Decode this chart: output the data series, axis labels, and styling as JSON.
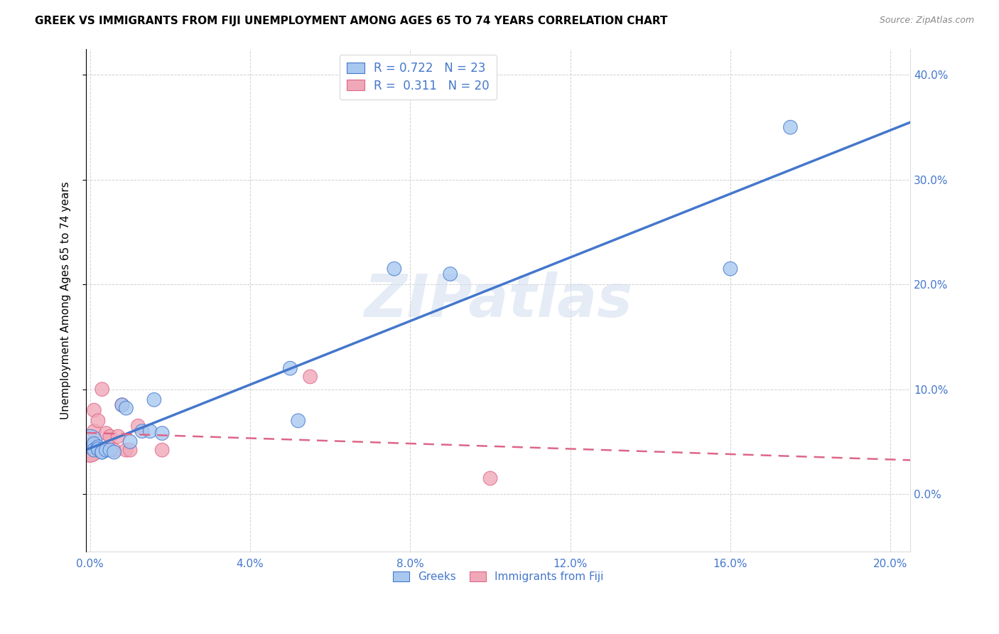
{
  "title": "GREEK VS IMMIGRANTS FROM FIJI UNEMPLOYMENT AMONG AGES 65 TO 74 YEARS CORRELATION CHART",
  "source": "Source: ZipAtlas.com",
  "ylabel": "Unemployment Among Ages 65 to 74 years",
  "xlim": [
    -0.001,
    0.205
  ],
  "ylim": [
    -0.055,
    0.425
  ],
  "xtick_positions": [
    0.0,
    0.04,
    0.08,
    0.12,
    0.16,
    0.2
  ],
  "xtick_labels": [
    "0.0%",
    "4.0%",
    "8.0%",
    "12.0%",
    "16.0%",
    "20.0%"
  ],
  "ytick_positions": [
    0.0,
    0.1,
    0.2,
    0.3,
    0.4
  ],
  "ytick_labels": [
    "0.0%",
    "10.0%",
    "20.0%",
    "30.0%",
    "40.0%"
  ],
  "greek_color": "#a8c8f0",
  "fiji_color": "#f0a8b8",
  "greek_line_color": "#4477cc",
  "fiji_line_color": "#dd6688",
  "legend_R_greek": "0.722",
  "legend_N_greek": "23",
  "legend_R_fiji": "0.311",
  "legend_N_fiji": "20",
  "greek_x": [
    0.0,
    0.001,
    0.001,
    0.002,
    0.002,
    0.003,
    0.003,
    0.004,
    0.005,
    0.006,
    0.008,
    0.009,
    0.01,
    0.013,
    0.015,
    0.016,
    0.018,
    0.05,
    0.052,
    0.076,
    0.09,
    0.16,
    0.175
  ],
  "greek_y": [
    0.05,
    0.048,
    0.042,
    0.045,
    0.043,
    0.04,
    0.04,
    0.042,
    0.042,
    0.04,
    0.085,
    0.082,
    0.05,
    0.06,
    0.06,
    0.09,
    0.058,
    0.12,
    0.07,
    0.215,
    0.21,
    0.215,
    0.35
  ],
  "fiji_x": [
    0.0,
    0.0,
    0.001,
    0.001,
    0.001,
    0.002,
    0.002,
    0.003,
    0.003,
    0.004,
    0.005,
    0.006,
    0.007,
    0.008,
    0.009,
    0.01,
    0.012,
    0.018,
    0.055,
    0.1
  ],
  "fiji_y": [
    0.042,
    0.042,
    0.08,
    0.06,
    0.045,
    0.042,
    0.07,
    0.042,
    0.1,
    0.058,
    0.055,
    0.042,
    0.055,
    0.085,
    0.042,
    0.042,
    0.065,
    0.042,
    0.112,
    0.015
  ],
  "greek_sizes": [
    600,
    200,
    200,
    200,
    200,
    200,
    200,
    200,
    200,
    200,
    200,
    200,
    200,
    200,
    200,
    200,
    200,
    200,
    200,
    200,
    200,
    200,
    200
  ],
  "fiji_sizes": [
    600,
    600,
    200,
    200,
    200,
    200,
    200,
    200,
    200,
    200,
    200,
    200,
    200,
    200,
    200,
    200,
    200,
    200,
    200,
    200
  ],
  "watermark_text": "ZIPatlas",
  "axis_color": "#4477cc",
  "grid_color": "#cccccc",
  "background_color": "#ffffff"
}
